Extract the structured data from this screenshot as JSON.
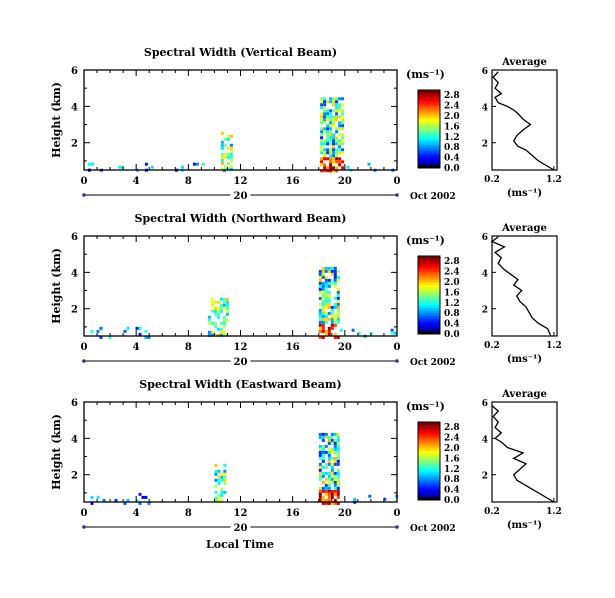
{
  "figure": {
    "xlabel": "Local Time",
    "date_label": "Oct 2002",
    "unit_label": "(ms⁻¹)",
    "avg_title": "Average",
    "avg_xlabel": "(ms⁻¹)"
  },
  "chart_data": [
    {
      "type": "heatmap",
      "title": "Spectral Width (Vertical Beam)",
      "ylabel": "Height (km)",
      "xlabel": "",
      "x_ticks": [
        "0",
        "4",
        "8",
        "12",
        "16",
        "20",
        "0"
      ],
      "x_range_hours": [
        0,
        24
      ],
      "day_tick_label": "20",
      "y_ticks": [
        2,
        4,
        6
      ],
      "ylim": [
        0.5,
        6
      ],
      "colorbar": {
        "ticks": [
          "0.0",
          "0.4",
          "0.8",
          "1.2",
          "1.6",
          "2.0",
          "2.4",
          "2.8"
        ],
        "max": 3.0
      },
      "clusters": [
        {
          "x_hours": [
            0.3,
            11.0
          ],
          "y_km": [
            0.5,
            0.9
          ],
          "intensity": "low",
          "note": "sparse near-ground echoes"
        },
        {
          "x_hours": [
            10.5,
            11.3
          ],
          "y_km": [
            0.5,
            2.6
          ],
          "intensity": "mid"
        },
        {
          "x_hours": [
            18.1,
            19.9
          ],
          "y_km": [
            0.5,
            4.5
          ],
          "intensity": "mixed"
        },
        {
          "x_hours": [
            19.9,
            23.8
          ],
          "y_km": [
            0.5,
            0.9
          ],
          "intensity": "low"
        }
      ],
      "average_profile": {
        "xlabel": "(ms⁻¹)",
        "x_ticks": [
          0.2,
          1.2
        ],
        "xlim": [
          0.2,
          1.25
        ],
        "ylim": [
          0.5,
          6
        ],
        "y_ticks": [
          2,
          4,
          6
        ],
        "points": [
          [
            1.2,
            0.5
          ],
          [
            1.05,
            0.8
          ],
          [
            0.95,
            1.0
          ],
          [
            0.85,
            1.3
          ],
          [
            0.75,
            1.6
          ],
          [
            0.62,
            1.8
          ],
          [
            0.55,
            2.1
          ],
          [
            0.6,
            2.4
          ],
          [
            0.7,
            2.7
          ],
          [
            0.82,
            3.0
          ],
          [
            0.7,
            3.3
          ],
          [
            0.62,
            3.6
          ],
          [
            0.55,
            3.8
          ],
          [
            0.45,
            4.0
          ],
          [
            0.3,
            4.2
          ],
          [
            0.25,
            4.5
          ],
          [
            0.35,
            4.7
          ],
          [
            0.25,
            5.0
          ],
          [
            0.3,
            5.3
          ],
          [
            0.22,
            5.6
          ],
          [
            0.3,
            5.9
          ]
        ]
      }
    },
    {
      "type": "heatmap",
      "title": "Spectral Width (Northward Beam)",
      "ylabel": "Height (km)",
      "xlabel": "",
      "x_ticks": [
        "0",
        "4",
        "8",
        "12",
        "16",
        "20",
        "0"
      ],
      "x_range_hours": [
        0,
        24
      ],
      "day_tick_label": "20",
      "y_ticks": [
        2,
        4,
        6
      ],
      "ylim": [
        0.5,
        6
      ],
      "colorbar": {
        "ticks": [
          "0.0",
          "0.4",
          "0.8",
          "1.2",
          "1.6",
          "2.0",
          "2.4",
          "2.8"
        ],
        "max": 3.0
      },
      "clusters": [
        {
          "x_hours": [
            0.5,
            5.0
          ],
          "y_km": [
            0.5,
            1.0
          ],
          "intensity": "low"
        },
        {
          "x_hours": [
            9.5,
            11.0
          ],
          "y_km": [
            0.5,
            2.6
          ],
          "intensity": "mid"
        },
        {
          "x_hours": [
            18.0,
            19.6
          ],
          "y_km": [
            0.5,
            4.3
          ],
          "intensity": "mixed"
        },
        {
          "x_hours": [
            19.6,
            24.0
          ],
          "y_km": [
            0.5,
            0.9
          ],
          "intensity": "low"
        }
      ],
      "average_profile": {
        "xlabel": "(ms⁻¹)",
        "x_ticks": [
          0.2,
          1.2
        ],
        "xlim": [
          0.2,
          1.25
        ],
        "ylim": [
          0.5,
          6
        ],
        "y_ticks": [
          2,
          4,
          6
        ],
        "points": [
          [
            1.15,
            0.5
          ],
          [
            1.1,
            0.9
          ],
          [
            0.95,
            1.2
          ],
          [
            0.85,
            1.5
          ],
          [
            0.8,
            1.8
          ],
          [
            0.75,
            2.1
          ],
          [
            0.65,
            2.4
          ],
          [
            0.6,
            2.7
          ],
          [
            0.68,
            3.0
          ],
          [
            0.55,
            3.3
          ],
          [
            0.62,
            3.6
          ],
          [
            0.5,
            3.9
          ],
          [
            0.38,
            4.2
          ],
          [
            0.3,
            4.5
          ],
          [
            0.35,
            4.8
          ],
          [
            0.25,
            5.1
          ],
          [
            0.4,
            5.4
          ],
          [
            0.2,
            5.7
          ],
          [
            0.3,
            5.95
          ]
        ]
      }
    },
    {
      "type": "heatmap",
      "title": "Spectral Width (Eastward Beam)",
      "ylabel": "Height (km)",
      "xlabel": "Local Time",
      "x_ticks": [
        "0",
        "4",
        "8",
        "12",
        "16",
        "20",
        "0"
      ],
      "x_range_hours": [
        0,
        24
      ],
      "day_tick_label": "20",
      "y_ticks": [
        2,
        4,
        6
      ],
      "ylim": [
        0.5,
        6
      ],
      "colorbar": {
        "ticks": [
          "0.0",
          "0.4",
          "0.8",
          "1.2",
          "1.6",
          "2.0",
          "2.4",
          "2.8"
        ],
        "max": 3.0
      },
      "clusters": [
        {
          "x_hours": [
            0.5,
            5.0
          ],
          "y_km": [
            0.5,
            1.0
          ],
          "intensity": "low"
        },
        {
          "x_hours": [
            10.0,
            10.7
          ],
          "y_km": [
            0.5,
            2.6
          ],
          "intensity": "mid"
        },
        {
          "x_hours": [
            18.0,
            19.5
          ],
          "y_km": [
            0.5,
            4.3
          ],
          "intensity": "mixed"
        },
        {
          "x_hours": [
            19.5,
            24.0
          ],
          "y_km": [
            0.5,
            0.9
          ],
          "intensity": "low"
        }
      ],
      "average_profile": {
        "xlabel": "(ms⁻¹)",
        "x_ticks": [
          0.2,
          1.2
        ],
        "xlim": [
          0.2,
          1.25
        ],
        "ylim": [
          0.5,
          6
        ],
        "y_ticks": [
          2,
          4,
          6
        ],
        "points": [
          [
            1.2,
            0.5
          ],
          [
            1.05,
            0.8
          ],
          [
            0.9,
            1.1
          ],
          [
            0.75,
            1.4
          ],
          [
            0.6,
            1.7
          ],
          [
            0.55,
            2.0
          ],
          [
            0.65,
            2.3
          ],
          [
            0.75,
            2.6
          ],
          [
            0.55,
            2.9
          ],
          [
            0.7,
            3.2
          ],
          [
            0.45,
            3.5
          ],
          [
            0.35,
            3.8
          ],
          [
            0.25,
            4.0
          ],
          [
            0.35,
            4.3
          ],
          [
            0.25,
            4.6
          ],
          [
            0.3,
            4.9
          ],
          [
            0.22,
            5.2
          ],
          [
            0.3,
            5.5
          ],
          [
            0.2,
            5.8
          ]
        ]
      }
    }
  ]
}
